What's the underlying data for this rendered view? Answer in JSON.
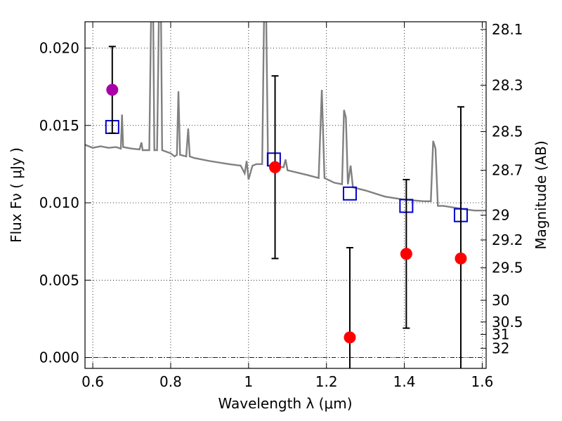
{
  "chart_data": {
    "type": "scatter",
    "title": "",
    "xlabel": "Wavelength  λ (μm)",
    "ylabel": "Flux  Fν  ( μJy )",
    "ylabel_right": "Magnitude (AB)",
    "xlim": [
      0.58,
      1.61
    ],
    "ylim": [
      -0.0007,
      0.0217
    ],
    "grid": true,
    "x_ticks": [
      {
        "value": 0.6,
        "label": "0.6"
      },
      {
        "value": 0.8,
        "label": "0.8"
      },
      {
        "value": 1.0,
        "label": "1"
      },
      {
        "value": 1.2,
        "label": "1.2"
      },
      {
        "value": 1.4,
        "label": "1.4"
      },
      {
        "value": 1.6,
        "label": "1.6"
      }
    ],
    "y_ticks": [
      {
        "value": 0.0,
        "label": "0.000"
      },
      {
        "value": 0.005,
        "label": "0.005"
      },
      {
        "value": 0.01,
        "label": "0.010"
      },
      {
        "value": 0.015,
        "label": "0.015"
      },
      {
        "value": 0.02,
        "label": "0.020"
      }
    ],
    "right_ticks": [
      {
        "flux": 0.0212,
        "label": "28.1"
      },
      {
        "flux": 0.0176,
        "label": "28.3"
      },
      {
        "flux": 0.0146,
        "label": "28.5"
      },
      {
        "flux": 0.0121,
        "label": "28.7"
      },
      {
        "flux": 0.0092,
        "label": "29"
      },
      {
        "flux": 0.0076,
        "label": "29.2"
      },
      {
        "flux": 0.0058,
        "label": "29.5"
      },
      {
        "flux": 0.0037,
        "label": "30"
      },
      {
        "flux": 0.0023,
        "label": "30.5"
      },
      {
        "flux": 0.0015,
        "label": "31"
      },
      {
        "flux": 0.0006,
        "label": "32"
      }
    ],
    "model_spectrum": {
      "color": "#808080",
      "points": [
        [
          0.58,
          0.01375
        ],
        [
          0.6,
          0.01355
        ],
        [
          0.62,
          0.01365
        ],
        [
          0.64,
          0.01355
        ],
        [
          0.66,
          0.0136
        ],
        [
          0.672,
          0.0135
        ],
        [
          0.675,
          0.0157
        ],
        [
          0.678,
          0.0136
        ],
        [
          0.7,
          0.0135
        ],
        [
          0.72,
          0.01345
        ],
        [
          0.725,
          0.0139
        ],
        [
          0.728,
          0.0134
        ],
        [
          0.745,
          0.0134
        ],
        [
          0.75,
          0.0225
        ],
        [
          0.755,
          0.0225
        ],
        [
          0.758,
          0.0134
        ],
        [
          0.765,
          0.0134
        ],
        [
          0.77,
          0.0225
        ],
        [
          0.775,
          0.0225
        ],
        [
          0.778,
          0.0134
        ],
        [
          0.8,
          0.0132
        ],
        [
          0.81,
          0.013
        ],
        [
          0.816,
          0.0131
        ],
        [
          0.82,
          0.0172
        ],
        [
          0.824,
          0.0131
        ],
        [
          0.84,
          0.013
        ],
        [
          0.845,
          0.0148
        ],
        [
          0.849,
          0.013
        ],
        [
          0.86,
          0.0129
        ],
        [
          0.9,
          0.0127
        ],
        [
          0.95,
          0.0125
        ],
        [
          0.98,
          0.0124
        ],
        [
          0.99,
          0.0119
        ],
        [
          0.995,
          0.0127
        ],
        [
          1.0,
          0.0115
        ],
        [
          1.01,
          0.0124
        ],
        [
          1.02,
          0.0125
        ],
        [
          1.035,
          0.0125
        ],
        [
          1.04,
          0.0225
        ],
        [
          1.045,
          0.0225
        ],
        [
          1.05,
          0.0124
        ],
        [
          1.09,
          0.0123
        ],
        [
          1.095,
          0.0128
        ],
        [
          1.1,
          0.0121
        ],
        [
          1.15,
          0.0118
        ],
        [
          1.18,
          0.0116
        ],
        [
          1.188,
          0.0173
        ],
        [
          1.195,
          0.0116
        ],
        [
          1.22,
          0.0113
        ],
        [
          1.24,
          0.0112
        ],
        [
          1.245,
          0.016
        ],
        [
          1.25,
          0.0155
        ],
        [
          1.255,
          0.0112
        ],
        [
          1.262,
          0.0124
        ],
        [
          1.268,
          0.011
        ],
        [
          1.3,
          0.0108
        ],
        [
          1.35,
          0.0104
        ],
        [
          1.4,
          0.0102
        ],
        [
          1.45,
          0.0101
        ],
        [
          1.468,
          0.0101
        ],
        [
          1.474,
          0.014
        ],
        [
          1.48,
          0.0135
        ],
        [
          1.486,
          0.0098
        ],
        [
          1.5,
          0.0098
        ],
        [
          1.55,
          0.0096
        ],
        [
          1.58,
          0.0095
        ],
        [
          1.61,
          0.0095
        ]
      ]
    },
    "series": [
      {
        "name": "",
        "marker": "open-square",
        "color": "#0000cc",
        "points": [
          [
            0.65,
            0.0149
          ],
          [
            1.065,
            0.0128
          ],
          [
            1.26,
            0.0106
          ],
          [
            1.405,
            0.0098
          ],
          [
            1.545,
            0.0092
          ]
        ]
      },
      {
        "name": "",
        "marker": "filled-circle",
        "color": "#ff0000",
        "points": [
          {
            "x": 1.068,
            "y": 0.0123,
            "err_low": 0.0064,
            "err_high": 0.0182
          },
          {
            "x": 1.26,
            "y": 0.0013,
            "err_low": -0.0045,
            "err_high": 0.0071
          },
          {
            "x": 1.405,
            "y": 0.0067,
            "err_low": 0.0019,
            "err_high": 0.0115
          },
          {
            "x": 1.545,
            "y": 0.0064,
            "err_low": -0.0034,
            "err_high": 0.0162
          }
        ]
      },
      {
        "name": "",
        "marker": "filled-circle",
        "color": "#aa00aa",
        "points": [
          {
            "x": 0.65,
            "y": 0.0173,
            "err_low": 0.0145,
            "err_high": 0.0201
          }
        ]
      }
    ],
    "reference_line": {
      "y": 0.0,
      "style": "dash-dot",
      "color": "#000000"
    }
  }
}
